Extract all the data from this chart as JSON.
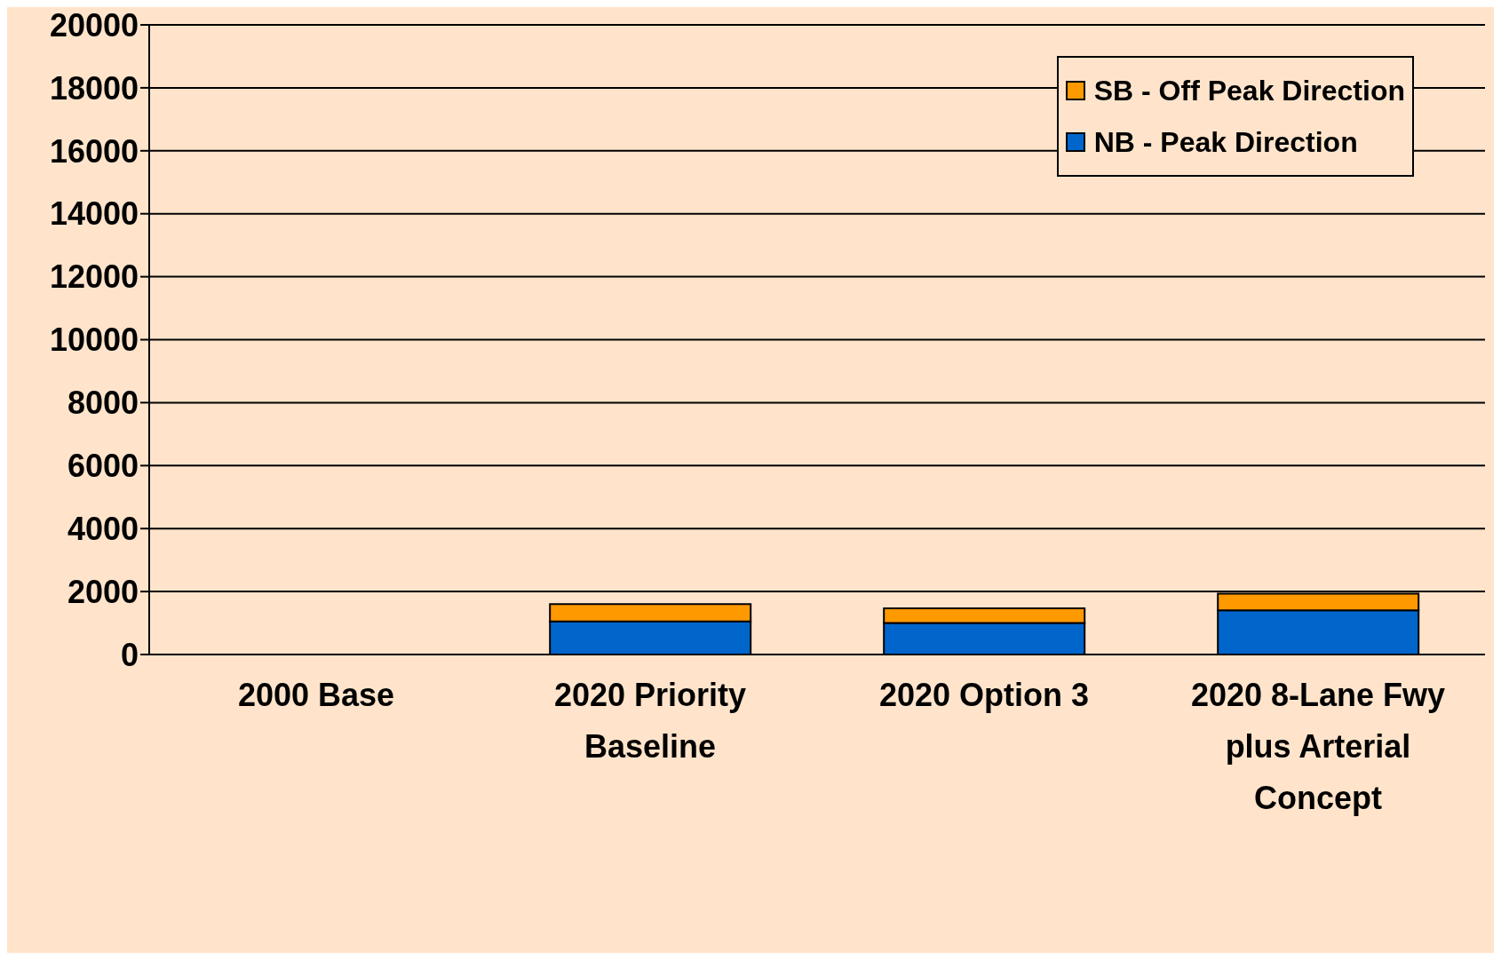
{
  "chart_data": {
    "type": "bar",
    "stacked": true,
    "categories": [
      "2000 Base",
      "2020 Priority Baseline",
      "2020 Option 3",
      "2020 8-Lane Fwy plus Arterial Concept"
    ],
    "series": [
      {
        "name": "NB - Peak Direction",
        "color": "#0066cc",
        "values": [
          0,
          1050,
          1000,
          1400
        ]
      },
      {
        "name": "SB - Off Peak Direction",
        "color": "#ff9900",
        "values": [
          0,
          550,
          470,
          530
        ]
      }
    ],
    "ylim": [
      0,
      20000
    ],
    "yticks": [
      0,
      2000,
      4000,
      6000,
      8000,
      10000,
      12000,
      14000,
      16000,
      18000,
      20000
    ],
    "grid": "y",
    "legend": "top right"
  }
}
